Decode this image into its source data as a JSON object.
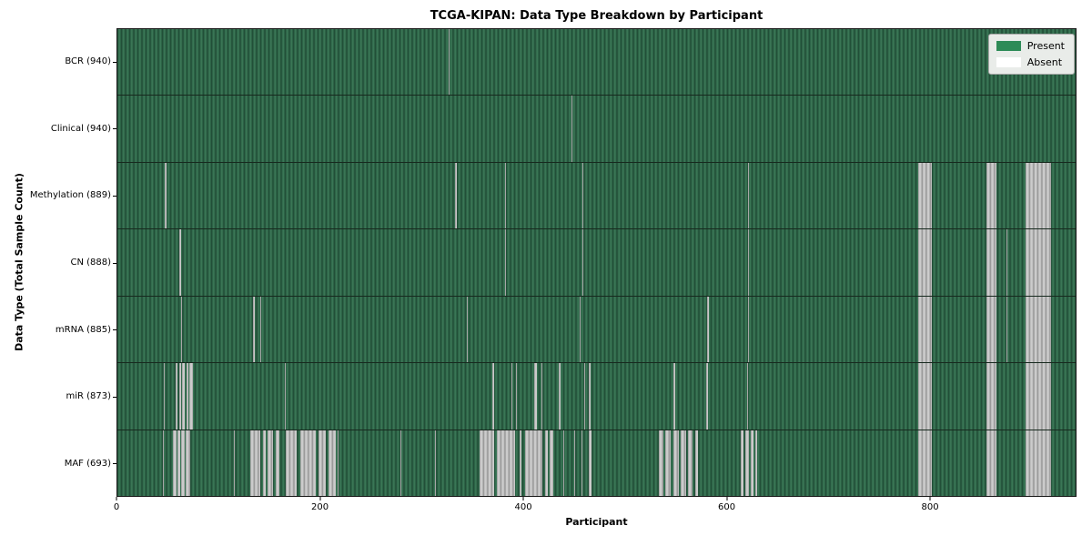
{
  "figure": {
    "title": "TCGA-KIPAN: Data Type Breakdown by Participant",
    "xlabel": "Participant",
    "ylabel": "Data Type (Total Sample Count)"
  },
  "legend": {
    "items": [
      {
        "label": "Present",
        "color": "#2e8b57"
      },
      {
        "label": "Absent",
        "color": "#ffffff"
      }
    ]
  },
  "chart_data": {
    "type": "heatmap",
    "title": "TCGA-KIPAN: Data Type Breakdown by Participant",
    "xlabel": "Participant",
    "ylabel": "Data Type (Total Sample Count)",
    "legend_position": "upper right",
    "present_color": "#2e8b57",
    "absent_color": "#ffffff",
    "total_participants": 940,
    "x_ticks": [
      0,
      200,
      400,
      600,
      800
    ],
    "x_max": 944,
    "rows": [
      {
        "data_type": "BCR",
        "label": "BCR (940)",
        "present_count": 940,
        "absent_runs": [
          [
            326,
            327
          ]
        ]
      },
      {
        "data_type": "Clinical",
        "label": "Clinical (940)",
        "present_count": 940,
        "absent_runs": [
          [
            447,
            448
          ]
        ]
      },
      {
        "data_type": "Methylation",
        "label": "Methylation (889)",
        "present_count": 889,
        "absent_runs": [
          [
            47,
            48
          ],
          [
            333,
            334
          ],
          [
            382,
            383
          ],
          [
            458,
            459
          ],
          [
            621,
            622
          ],
          [
            789,
            802
          ],
          [
            856,
            866
          ],
          [
            895,
            920
          ]
        ]
      },
      {
        "data_type": "CN",
        "label": "CN (888)",
        "present_count": 888,
        "absent_runs": [
          [
            61,
            63
          ],
          [
            382,
            383
          ],
          [
            458,
            459
          ],
          [
            621,
            622
          ],
          [
            789,
            802
          ],
          [
            856,
            866
          ],
          [
            876,
            877
          ],
          [
            895,
            920
          ]
        ]
      },
      {
        "data_type": "mRNA",
        "label": "mRNA (885)",
        "present_count": 885,
        "absent_runs": [
          [
            63,
            64
          ],
          [
            134,
            135
          ],
          [
            141,
            142
          ],
          [
            344,
            345
          ],
          [
            455,
            456
          ],
          [
            581,
            583
          ],
          [
            621,
            622
          ],
          [
            789,
            802
          ],
          [
            856,
            866
          ],
          [
            876,
            877
          ],
          [
            895,
            920
          ]
        ]
      },
      {
        "data_type": "miR",
        "label": "miR (873)",
        "present_count": 873,
        "absent_runs": [
          [
            46,
            47
          ],
          [
            57,
            59
          ],
          [
            61,
            63
          ],
          [
            64,
            66
          ],
          [
            68,
            70
          ],
          [
            71,
            74
          ],
          [
            165,
            166
          ],
          [
            369,
            371
          ],
          [
            388,
            389
          ],
          [
            393,
            394
          ],
          [
            411,
            413
          ],
          [
            418,
            419
          ],
          [
            435,
            437
          ],
          [
            460,
            461
          ],
          [
            464,
            466
          ],
          [
            548,
            550
          ],
          [
            580,
            582
          ],
          [
            620,
            621
          ],
          [
            789,
            802
          ],
          [
            856,
            866
          ],
          [
            895,
            920
          ]
        ]
      },
      {
        "data_type": "MAF",
        "label": "MAF (693)",
        "present_count": 693,
        "absent_runs": [
          [
            45,
            46
          ],
          [
            55,
            58
          ],
          [
            59,
            62
          ],
          [
            63,
            66
          ],
          [
            67,
            72
          ],
          [
            115,
            116
          ],
          [
            131,
            141
          ],
          [
            143,
            146
          ],
          [
            148,
            153
          ],
          [
            156,
            160
          ],
          [
            166,
            177
          ],
          [
            180,
            195
          ],
          [
            198,
            205
          ],
          [
            208,
            215
          ],
          [
            217,
            218
          ],
          [
            279,
            280
          ],
          [
            313,
            314
          ],
          [
            357,
            371
          ],
          [
            374,
            392
          ],
          [
            396,
            398
          ],
          [
            402,
            419
          ],
          [
            421,
            424
          ],
          [
            426,
            429
          ],
          [
            439,
            440
          ],
          [
            450,
            451
          ],
          [
            457,
            458
          ],
          [
            464,
            467
          ],
          [
            533,
            538
          ],
          [
            540,
            545
          ],
          [
            548,
            553
          ],
          [
            555,
            560
          ],
          [
            562,
            567
          ],
          [
            569,
            572
          ],
          [
            614,
            617
          ],
          [
            619,
            622
          ],
          [
            624,
            627
          ],
          [
            628,
            630
          ],
          [
            789,
            802
          ],
          [
            856,
            866
          ],
          [
            895,
            920
          ]
        ]
      }
    ]
  }
}
